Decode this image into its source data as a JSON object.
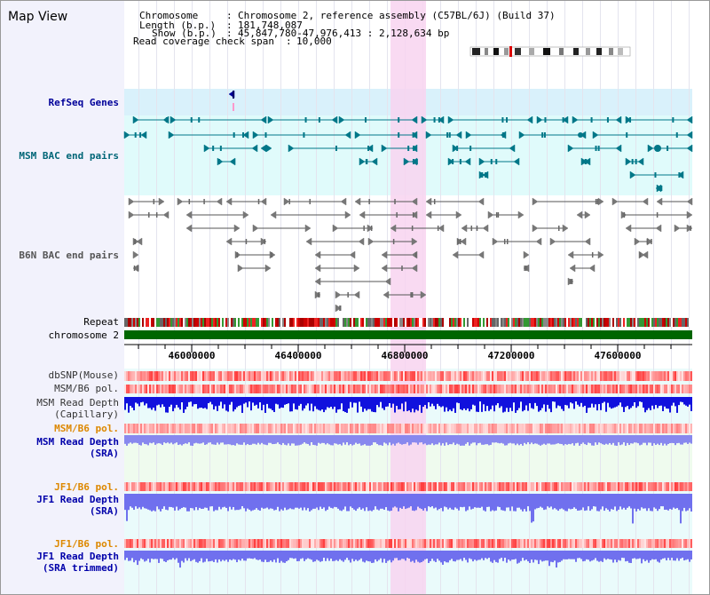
{
  "title": "Map View",
  "info": {
    "chromosome_label": "Chromosome",
    "chromosome_value": "Chromosome 2, reference assembly (C57BL/6J) (Build 37)",
    "length_label": "Length (b.p.)",
    "length_value": "181,748,087",
    "show_label": "Show (b.p.)",
    "show_value": "45,847,780-47,976,413 : 2,128,634 bp",
    "coverage_label": "Read coverage check span",
    "coverage_value": "10,000"
  },
  "tracks": {
    "refseq": "RefSeq Genes",
    "msm_bac": "MSM BAC end pairs",
    "b6n_bac": "B6N BAC end pairs",
    "repeat": "Repeat",
    "chromosome": "chromosome 2",
    "dbsnp": "dbSNP(Mouse)",
    "msm_b6_pol": "MSM/B6 pol.",
    "msm_depth_cap_1": "MSM Read Depth",
    "msm_depth_cap_2": "(Capillary)",
    "msm_b6_pol_2": "MSM/B6 pol.",
    "msm_depth_sra_1": "MSM Read Depth",
    "msm_depth_sra_2": "(SRA)",
    "jf1_b6_pol": "JF1/B6 pol.",
    "jf1_depth_sra_1": "JF1 Read Depth",
    "jf1_depth_sra_2": "(SRA)",
    "jf1_b6_pol_2": "JF1/B6 pol.",
    "jf1_depth_trim_1": "JF1 Read Depth",
    "jf1_depth_trim_2": "(SRA trimmed)"
  },
  "axis": {
    "ticks": [
      "46000000",
      "46400000",
      "46800000",
      "47200000",
      "47600000"
    ]
  },
  "colors": {
    "page_bg": "#ffffff",
    "label_bg": "#f2f2fc",
    "refseq_bg": "#d9f1fb",
    "msm_bac_bg": "#e0fbfb",
    "msm_sra_bg": "#effbee",
    "light_bg": "#eafbfb",
    "highlight": "#f8d3f0",
    "refseq_text": "#000099",
    "msm_bac_text": "#006677",
    "b6n_text": "#555555",
    "msm_text": "#0000aa",
    "pol_text": "#dd8800",
    "chrom_bar": "#006600",
    "teal": "#007788",
    "gray": "#555555",
    "depth_dark": "#1111dd",
    "depth_light": "#7777ee"
  }
}
